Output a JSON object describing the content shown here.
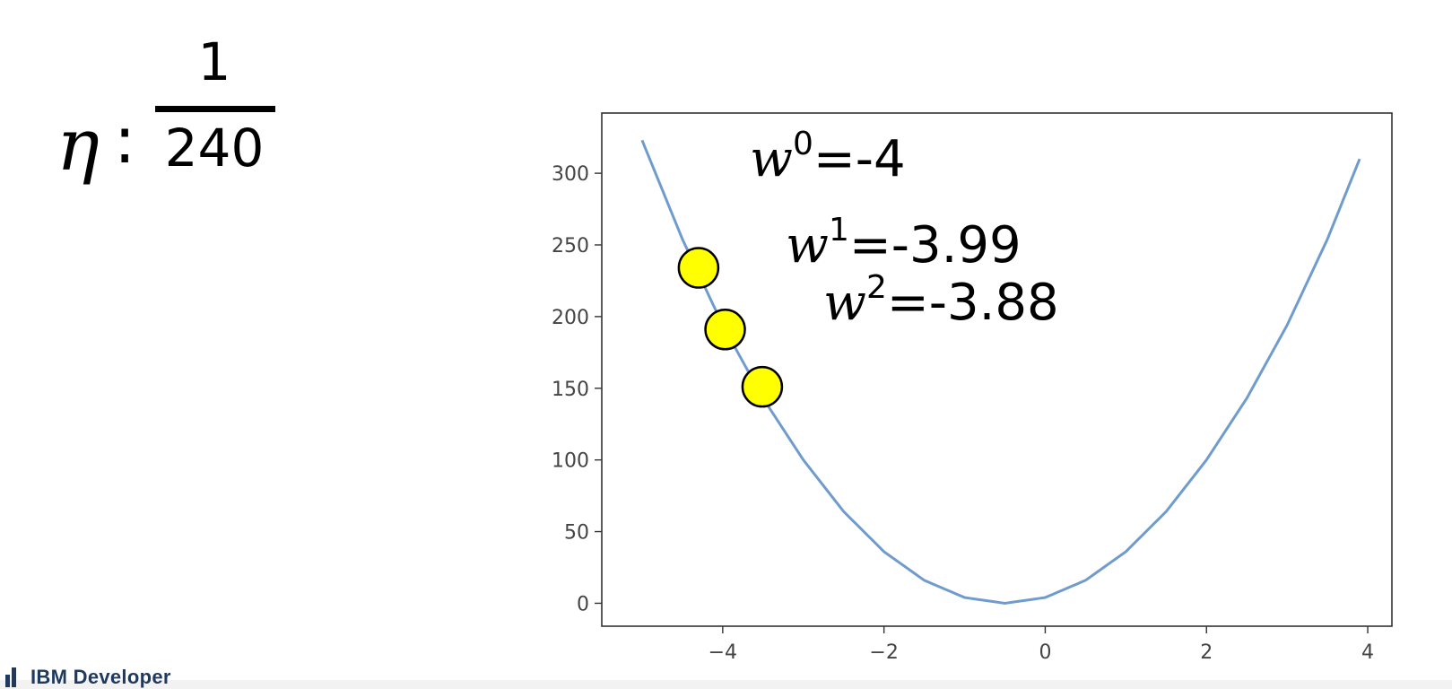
{
  "learning_rate": {
    "symbol": "η",
    "separator": ":",
    "numerator": "1",
    "denominator": "240"
  },
  "annotations": [
    {
      "base": "w",
      "sup": "0",
      "text": "=-4"
    },
    {
      "base": "w",
      "sup": "1",
      "text": "=-3.99"
    },
    {
      "base": "w",
      "sup": "2",
      "text": "=-3.88"
    }
  ],
  "footer": {
    "brand": "IBM Developer"
  },
  "chart_data": {
    "type": "line",
    "title": "",
    "xlabel": "",
    "ylabel": "",
    "xlim": [
      -5.5,
      4.3
    ],
    "ylim": [
      -16,
      342
    ],
    "xticks": [
      -4,
      -2,
      0,
      2,
      4
    ],
    "xtick_labels": [
      "−4",
      "−2",
      "0",
      "2",
      "4"
    ],
    "yticks": [
      0,
      50,
      100,
      150,
      200,
      250,
      300
    ],
    "ytick_labels": [
      "0",
      "50",
      "100",
      "150",
      "200",
      "250",
      "300"
    ],
    "grid": false,
    "legend": "none",
    "series": [
      {
        "kind": "curve",
        "color": "#6f9ccd",
        "x": [
          -5,
          -4.5,
          -4,
          -3.5,
          -3,
          -2.5,
          -2,
          -1.5,
          -1,
          -0.5,
          0,
          0.5,
          1,
          1.5,
          2,
          2.5,
          3,
          3.5,
          3.9
        ],
        "y": [
          323,
          254,
          194,
          143,
          100,
          64,
          36,
          16,
          4,
          0,
          4,
          16,
          36,
          64,
          100,
          143,
          194,
          254,
          310
        ]
      },
      {
        "kind": "points",
        "color": "#ffff00",
        "edge_color": "#000000",
        "x": [
          -4.3,
          -3.97,
          -3.51
        ],
        "y": [
          234,
          191,
          151
        ]
      }
    ]
  }
}
